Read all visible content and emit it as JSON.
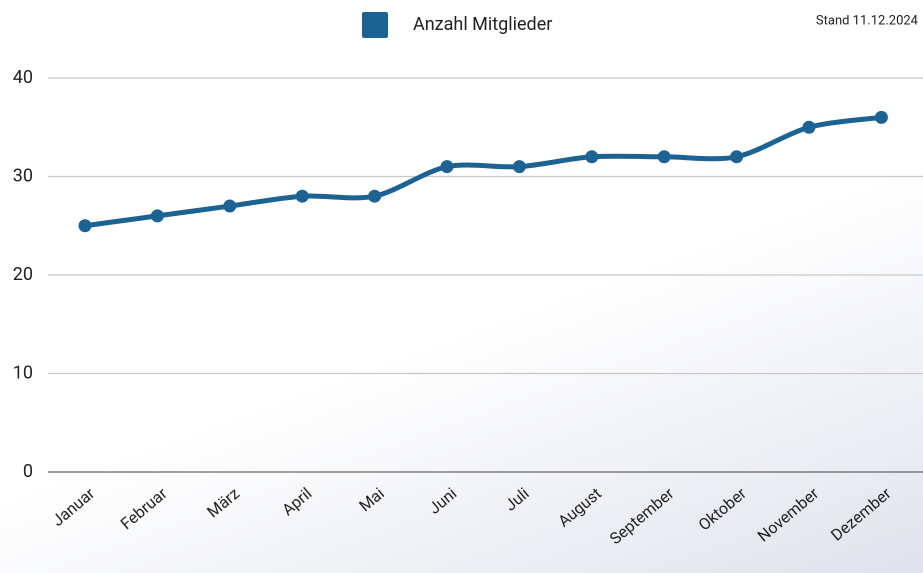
{
  "chart_data": {
    "type": "line",
    "legend_title": null,
    "annotation": "Stand 11.12.2024",
    "categories": [
      "Januar",
      "Februar",
      "März",
      "April",
      "Mai",
      "Juni",
      "Juli",
      "August",
      "September",
      "Oktober",
      "November",
      "Dezember"
    ],
    "series": [
      {
        "name": "Anzahl Mitglieder",
        "color": "#1c6394",
        "values": [
          25,
          26,
          27,
          28,
          28,
          31,
          31,
          32,
          32,
          32,
          35,
          36
        ]
      }
    ],
    "ylim": [
      0,
      40
    ],
    "yticks": [
      0,
      10,
      20,
      30,
      40
    ],
    "grid": true,
    "legend": "top"
  }
}
